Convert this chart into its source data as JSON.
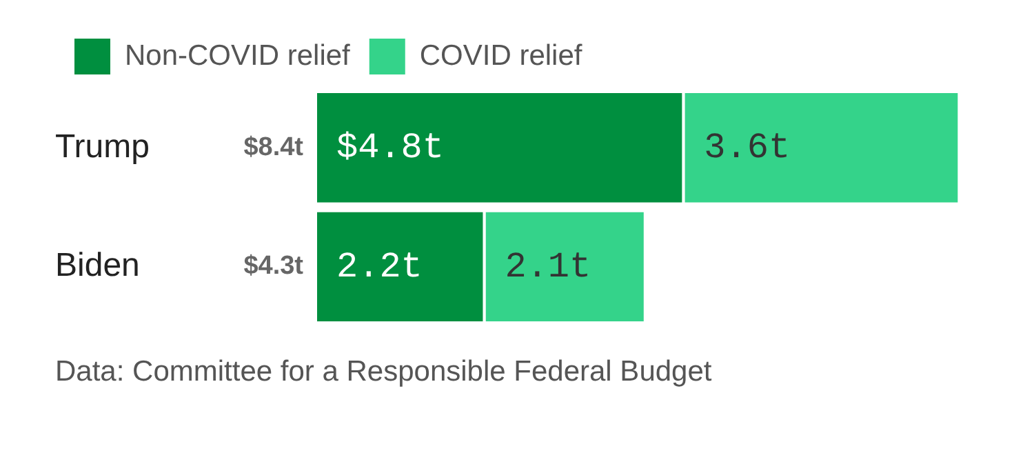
{
  "chart_data": {
    "type": "bar",
    "orientation": "horizontal",
    "stacked": true,
    "categories": [
      "Trump",
      "Biden"
    ],
    "series": [
      {
        "name": "Non-COVID relief",
        "color": "#008f3f",
        "values": [
          4.8,
          2.2
        ],
        "value_labels": [
          "$4.8t",
          "2.2t"
        ]
      },
      {
        "name": "COVID relief",
        "color": "#34d38a",
        "values": [
          3.6,
          2.1
        ],
        "value_labels": [
          "3.6t",
          "2.1t"
        ]
      }
    ],
    "legend": "top left",
    "annotations": [
      {
        "text": "$8.4t",
        "x": 0,
        "y": "Trump"
      },
      {
        "text": "$4.3t",
        "x": 0,
        "y": "Biden"
      },
      "Data: Committee for a Responsible Federal Budget"
    ]
  }
}
